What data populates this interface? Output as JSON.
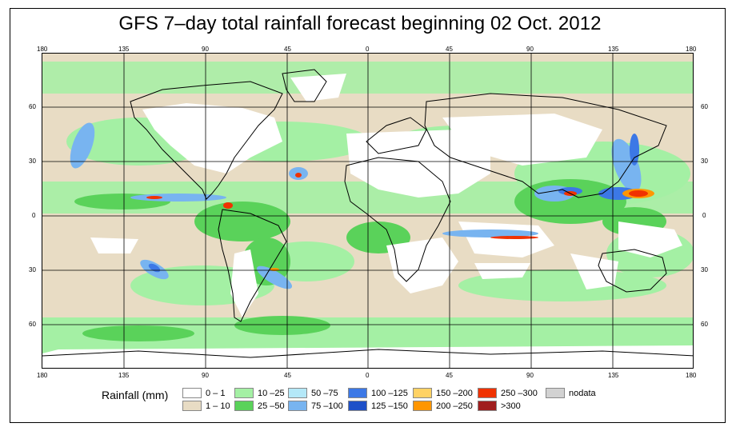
{
  "title": "GFS 7–day total rainfall forecast beginning 02 Oct. 2012",
  "axis": {
    "lon_ticks": [
      "180",
      "135",
      "90",
      "45",
      "0",
      "45",
      "90",
      "135",
      "180"
    ],
    "lat_ticks": [
      "60",
      "30",
      "0",
      "30",
      "60"
    ]
  },
  "legend": {
    "title": "Rainfall (mm)",
    "items": [
      {
        "label": "0 – 1",
        "color": "#ffffff"
      },
      {
        "label": "1 – 10",
        "color": "#e8dcc4"
      },
      {
        "label": "10 –25",
        "color": "#a4f0a4"
      },
      {
        "label": "25 –50",
        "color": "#5ad25a"
      },
      {
        "label": "50 –75",
        "color": "#b4e8f8"
      },
      {
        "label": "75 –100",
        "color": "#78b4f0"
      },
      {
        "label": "100 –125",
        "color": "#3c78e6"
      },
      {
        "label": "125 –150",
        "color": "#1e50c8"
      },
      {
        "label": "150 –200",
        "color": "#ffd264"
      },
      {
        "label": "200 –250",
        "color": "#ff9600"
      },
      {
        "label": "250 –300",
        "color": "#f03200"
      },
      {
        "label": ">300",
        "color": "#a01e1e"
      },
      {
        "label": "nodata",
        "color": "#d2d2d2"
      }
    ]
  },
  "colors": {
    "land_dry": "#ffffff",
    "ocean_light": "#e8dcc4",
    "moderate": "#a4f0a4",
    "heavy": "#5ad25a",
    "intense": "#3c78e6",
    "extreme": "#f03200"
  }
}
